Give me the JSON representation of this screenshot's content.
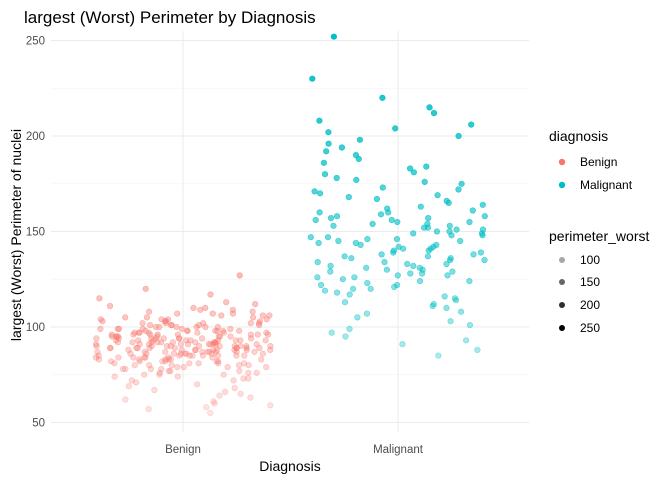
{
  "chart_data": {
    "type": "scatter",
    "title": "largest (Worst) Perimeter by Diagnosis",
    "xlabel": "Diagnosis",
    "ylabel": "largest (Worst) Perimeter of nuclei",
    "categories": [
      "Benign",
      "Malignant"
    ],
    "y_ticks": [
      50,
      100,
      150,
      200,
      250
    ],
    "ylim": [
      45,
      255
    ],
    "grid": true,
    "jitter": "horizontal",
    "color_legend": {
      "title": "diagnosis",
      "entries": [
        {
          "label": "Benign",
          "color": "#F8766D"
        },
        {
          "label": "Malignant",
          "color": "#00BFC4"
        }
      ]
    },
    "alpha_legend": {
      "title": "perimeter_worst",
      "entries": [
        {
          "label": "100",
          "value": 100
        },
        {
          "label": "150",
          "value": 150
        },
        {
          "label": "200",
          "value": 200
        },
        {
          "label": "250",
          "value": 250
        }
      ]
    },
    "series": [
      {
        "category": "Benign",
        "y": [
          55,
          57,
          58,
          59,
          60,
          61,
          62,
          63,
          64,
          65,
          66,
          67,
          68,
          69,
          70,
          71,
          72,
          72,
          73,
          73,
          74,
          74,
          75,
          75,
          75,
          76,
          76,
          76,
          77,
          77,
          77,
          78,
          78,
          78,
          78,
          79,
          79,
          79,
          79,
          80,
          80,
          80,
          80,
          80,
          81,
          81,
          81,
          81,
          81,
          82,
          82,
          82,
          82,
          82,
          82,
          83,
          83,
          83,
          83,
          83,
          83,
          84,
          84,
          84,
          84,
          84,
          84,
          84,
          85,
          85,
          85,
          85,
          85,
          85,
          85,
          85,
          86,
          86,
          86,
          86,
          86,
          86,
          86,
          86,
          87,
          87,
          87,
          87,
          87,
          87,
          87,
          87,
          87,
          88,
          88,
          88,
          88,
          88,
          88,
          88,
          88,
          88,
          89,
          89,
          89,
          89,
          89,
          89,
          89,
          89,
          89,
          89,
          90,
          90,
          90,
          90,
          90,
          90,
          90,
          90,
          90,
          90,
          91,
          91,
          91,
          91,
          91,
          91,
          91,
          91,
          91,
          91,
          92,
          92,
          92,
          92,
          92,
          92,
          92,
          92,
          92,
          92,
          93,
          93,
          93,
          93,
          93,
          93,
          93,
          93,
          93,
          94,
          94,
          94,
          94,
          94,
          94,
          94,
          94,
          94,
          95,
          95,
          95,
          95,
          95,
          95,
          95,
          95,
          96,
          96,
          96,
          96,
          96,
          96,
          96,
          96,
          97,
          97,
          97,
          97,
          97,
          97,
          97,
          98,
          98,
          98,
          98,
          98,
          98,
          98,
          99,
          99,
          99,
          99,
          99,
          99,
          100,
          100,
          100,
          100,
          100,
          100,
          101,
          101,
          101,
          101,
          101,
          102,
          102,
          102,
          102,
          102,
          103,
          103,
          103,
          103,
          104,
          104,
          104,
          104,
          105,
          105,
          105,
          106,
          106,
          106,
          107,
          107,
          107,
          108,
          108,
          109,
          109,
          110,
          110,
          111,
          112,
          113,
          115,
          117,
          120,
          127
        ]
      },
      {
        "category": "Malignant",
        "y": [
          85,
          88,
          91,
          93,
          95,
          97,
          99,
          101,
          103,
          105,
          107,
          108,
          110,
          111,
          112,
          113,
          114,
          115,
          116,
          117,
          118,
          119,
          120,
          120,
          121,
          122,
          122,
          123,
          124,
          124,
          125,
          126,
          126,
          127,
          127,
          128,
          128,
          129,
          129,
          130,
          130,
          131,
          131,
          132,
          132,
          133,
          133,
          134,
          134,
          135,
          135,
          136,
          136,
          137,
          137,
          138,
          138,
          139,
          139,
          140,
          140,
          141,
          141,
          142,
          142,
          143,
          143,
          144,
          144,
          145,
          145,
          146,
          146,
          147,
          147,
          148,
          148,
          149,
          149,
          150,
          150,
          151,
          151,
          152,
          152,
          153,
          153,
          154,
          154,
          155,
          155,
          156,
          156,
          157,
          157,
          158,
          158,
          159,
          160,
          160,
          161,
          162,
          163,
          164,
          165,
          166,
          167,
          168,
          169,
          170,
          171,
          172,
          173,
          175,
          176,
          177,
          178,
          180,
          181,
          183,
          184,
          186,
          188,
          190,
          192,
          194,
          196,
          198,
          200,
          202,
          204,
          206,
          208,
          212,
          215,
          220,
          230,
          252
        ]
      }
    ]
  }
}
